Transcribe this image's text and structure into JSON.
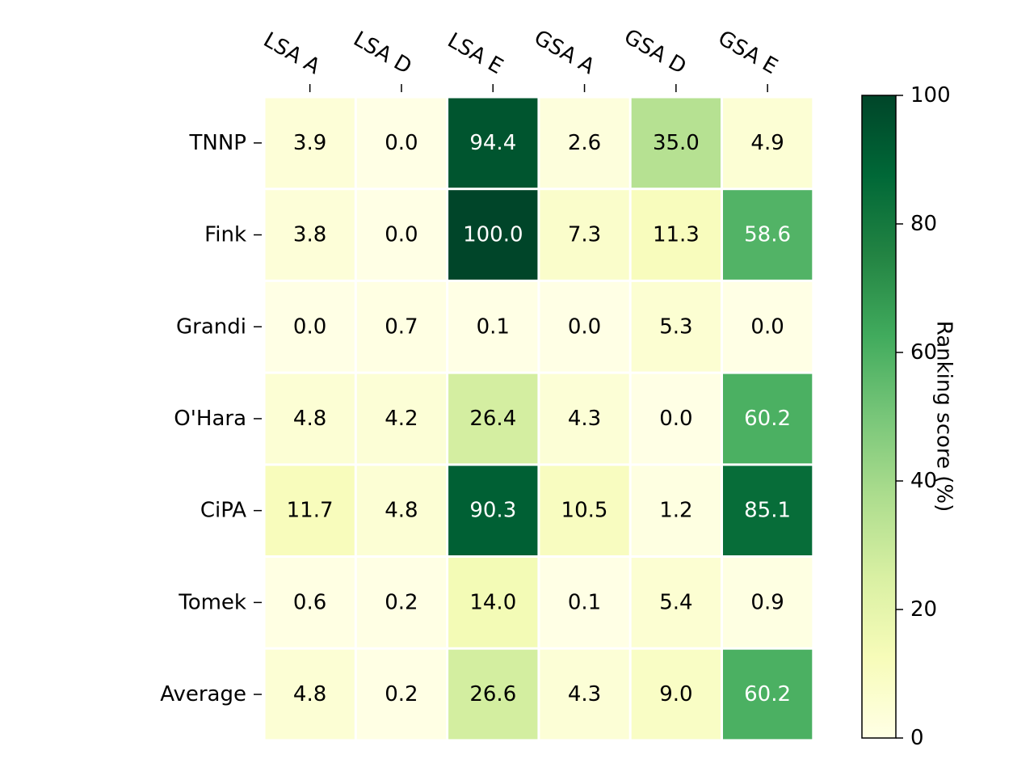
{
  "chart_data": {
    "type": "heatmap",
    "columns": [
      "LSA A",
      "LSA D",
      "LSA E",
      "GSA A",
      "GSA D",
      "GSA E"
    ],
    "rows": [
      "TNNP",
      "Fink",
      "Grandi",
      "O'Hara",
      "CiPA",
      "Tomek",
      "Average"
    ],
    "values": [
      [
        3.9,
        0.0,
        94.4,
        2.6,
        35.0,
        4.9
      ],
      [
        3.8,
        0.0,
        100.0,
        7.3,
        11.3,
        58.6
      ],
      [
        0.0,
        0.7,
        0.1,
        0.0,
        5.3,
        0.0
      ],
      [
        4.8,
        4.2,
        26.4,
        4.3,
        0.0,
        60.2
      ],
      [
        11.7,
        4.8,
        90.3,
        10.5,
        1.2,
        85.1
      ],
      [
        0.6,
        0.2,
        14.0,
        0.1,
        5.4,
        0.9
      ],
      [
        4.8,
        0.2,
        26.6,
        4.3,
        9.0,
        60.2
      ]
    ],
    "value_labels": [
      [
        "3.9",
        "0.0",
        "94.4",
        "2.6",
        "35.0",
        "4.9"
      ],
      [
        "3.8",
        "0.0",
        "100.0",
        "7.3",
        "11.3",
        "58.6"
      ],
      [
        "0.0",
        "0.7",
        "0.1",
        "0.0",
        "5.3",
        "0.0"
      ],
      [
        "4.8",
        "4.2",
        "26.4",
        "4.3",
        "0.0",
        "60.2"
      ],
      [
        "11.7",
        "4.8",
        "90.3",
        "10.5",
        "1.2",
        "85.1"
      ],
      [
        "0.6",
        "0.2",
        "14.0",
        "0.1",
        "5.4",
        "0.9"
      ],
      [
        "4.8",
        "0.2",
        "26.6",
        "4.3",
        "9.0",
        "60.2"
      ]
    ],
    "colormap": "YlGn",
    "colorbar": {
      "label": "Ranking score (%)",
      "range": [
        0,
        100
      ],
      "ticks": [
        0,
        20,
        40,
        60,
        80,
        100
      ],
      "tick_labels": [
        "0",
        "20",
        "40",
        "60",
        "80",
        "100"
      ]
    },
    "x_tick_position": "top",
    "cell_separator_color": "#ffffff",
    "text_color_dark": "#000000",
    "text_color_light": "#ffffff"
  }
}
